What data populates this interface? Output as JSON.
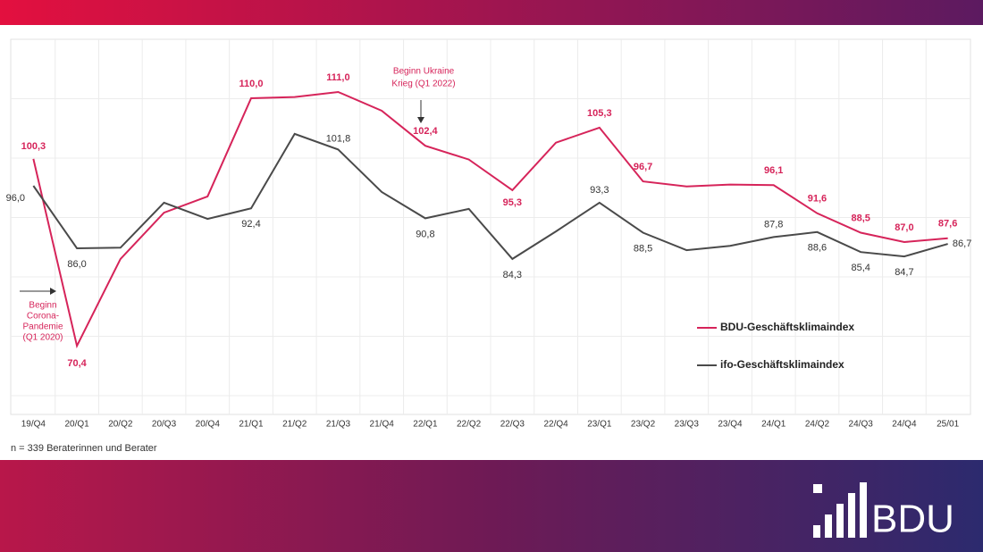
{
  "chart_data": {
    "type": "line",
    "categories": [
      "19/Q4",
      "20/Q1",
      "20/Q2",
      "20/Q3",
      "20/Q4",
      "21/Q1",
      "21/Q2",
      "21/Q3",
      "21/Q4",
      "22/Q1",
      "22/Q2",
      "22/Q3",
      "22/Q4",
      "23/Q1",
      "23/Q2",
      "23/Q3",
      "23/Q4",
      "24/Q1",
      "24/Q2",
      "24/Q3",
      "24/Q4",
      "25/01"
    ],
    "series": [
      {
        "name": "BDU-Geschäftsklimaindex",
        "color": "#d6245a",
        "values": [
          100.3,
          70.4,
          84.3,
          91.7,
          94.3,
          110.0,
          110.2,
          111.0,
          108.0,
          102.4,
          100.2,
          95.3,
          102.9,
          105.3,
          96.7,
          95.9,
          96.2,
          96.1,
          91.6,
          88.5,
          87.0,
          87.6
        ],
        "value_labels": [
          "100,3",
          "70,4",
          null,
          null,
          null,
          "110,0",
          null,
          "111,0",
          null,
          "102,4",
          null,
          "95,3",
          null,
          "105,3",
          "96,7",
          null,
          null,
          "96,1",
          "91,6",
          "88,5",
          "87,0",
          "87,6"
        ]
      },
      {
        "name": "ifo-Geschäftsklimaindex",
        "color": "#4a4a4a",
        "values": [
          96.0,
          86.0,
          86.1,
          93.3,
          90.7,
          92.4,
          104.3,
          101.8,
          95.0,
          90.8,
          92.3,
          84.3,
          88.7,
          93.3,
          88.5,
          85.7,
          86.4,
          87.8,
          88.6,
          85.4,
          84.7,
          86.7
        ],
        "value_labels": [
          "96,0",
          "86,0",
          null,
          null,
          null,
          "92,4",
          null,
          "101,8",
          null,
          "90,8",
          null,
          "84,3",
          null,
          "93,3",
          "88,5",
          null,
          null,
          "87,8",
          "88,6",
          "85,4",
          "84,7",
          "86,7"
        ]
      }
    ],
    "ylim": [
      60,
      120
    ],
    "annotations": [
      {
        "lines": [
          "Beginn Ukraine",
          "Krieg (Q1 2022)"
        ]
      },
      {
        "lines": [
          "Beginn",
          "Corona-",
          "Pandemie",
          "(Q1 2020)"
        ]
      }
    ],
    "footnote": "n = 339 Beraterinnen und Berater",
    "logo": "BDU"
  }
}
